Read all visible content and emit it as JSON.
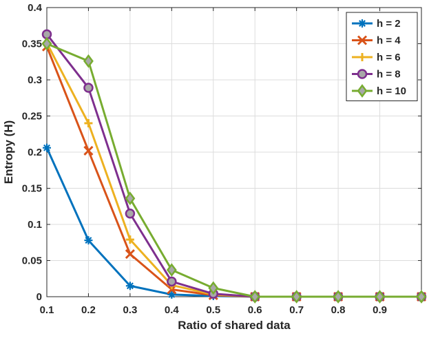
{
  "chart_data": {
    "type": "line",
    "title": "",
    "xlabel": "Ratio of shared data",
    "ylabel": "Entropy (H)",
    "xlim": [
      0.1,
      1.0
    ],
    "ylim": [
      0,
      0.4
    ],
    "xticks": [
      "0.1",
      "0.2",
      "0.3",
      "0.4",
      "0.5",
      "0.6",
      "0.7",
      "0.8",
      "0.9"
    ],
    "yticks": [
      "0",
      "0.05",
      "0.1",
      "0.15",
      "0.2",
      "0.25",
      "0.3",
      "0.35",
      "0.4"
    ],
    "grid": true,
    "legend_position": "top-right",
    "x": [
      0.1,
      0.2,
      0.3,
      0.4,
      0.5,
      0.6,
      0.7,
      0.8,
      0.9,
      1.0
    ],
    "series": [
      {
        "name": "h = 2",
        "color": "#0072BD",
        "marker": "asterisk",
        "values": [
          0.206,
          0.078,
          0.015,
          0.003,
          0.001,
          0,
          0,
          0,
          0,
          0
        ]
      },
      {
        "name": "h = 4",
        "color": "#D95319",
        "marker": "x",
        "values": [
          0.346,
          0.202,
          0.059,
          0.01,
          0.002,
          0,
          0,
          0,
          0,
          0
        ]
      },
      {
        "name": "h = 6",
        "color": "#EDB120",
        "marker": "plus",
        "values": [
          0.351,
          0.24,
          0.079,
          0.016,
          0.003,
          0,
          0,
          0,
          0,
          0
        ]
      },
      {
        "name": "h = 8",
        "color": "#7E2F8E",
        "marker": "circle",
        "values": [
          0.363,
          0.289,
          0.115,
          0.021,
          0.004,
          0,
          0,
          0,
          0,
          0
        ]
      },
      {
        "name": "h = 10",
        "color": "#77AC30",
        "marker": "diamond",
        "values": [
          0.35,
          0.326,
          0.136,
          0.037,
          0.012,
          0,
          0,
          0,
          0,
          0
        ]
      }
    ]
  }
}
